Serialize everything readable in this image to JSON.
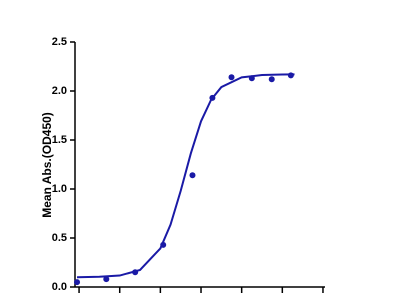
{
  "chart_data": {
    "type": "scatter",
    "ylabel": "Mean Abs.(OD450)",
    "xlim": [
      -0.1,
      6.05
    ],
    "xticks": [
      0,
      1,
      2,
      3,
      4,
      5,
      6
    ],
    "ylim": [
      0,
      2.5
    ],
    "yticks": [
      {
        "value": 0,
        "label": "0.0"
      },
      {
        "value": 0.5,
        "label": "0.5"
      },
      {
        "value": 1,
        "label": "1.0"
      },
      {
        "value": 1.5,
        "label": "1.5"
      },
      {
        "value": 2,
        "label": "2.0"
      },
      {
        "value": 2.5,
        "label": "2.5"
      }
    ],
    "series": [
      {
        "style": "points",
        "color": "#1a1aa6",
        "x": [
          -0.05,
          0.67,
          1.38,
          2.07,
          2.79,
          3.28,
          3.75,
          4.25,
          4.74,
          5.21
        ],
        "values": [
          0.05,
          0.08,
          0.15,
          0.43,
          1.14,
          1.93,
          2.14,
          2.13,
          2.12,
          2.16
        ]
      },
      {
        "style": "line",
        "color": "#1a1aa6",
        "x": [
          -0.05,
          0.5,
          1,
          1.5,
          2,
          2.25,
          2.5,
          2.75,
          3,
          3.25,
          3.5,
          4,
          4.5,
          5,
          5.3
        ],
        "values": [
          0.1,
          0.104,
          0.117,
          0.174,
          0.394,
          0.636,
          0.981,
          1.364,
          1.691,
          1.912,
          2.04,
          2.139,
          2.163,
          2.169,
          2.17
        ]
      }
    ]
  }
}
